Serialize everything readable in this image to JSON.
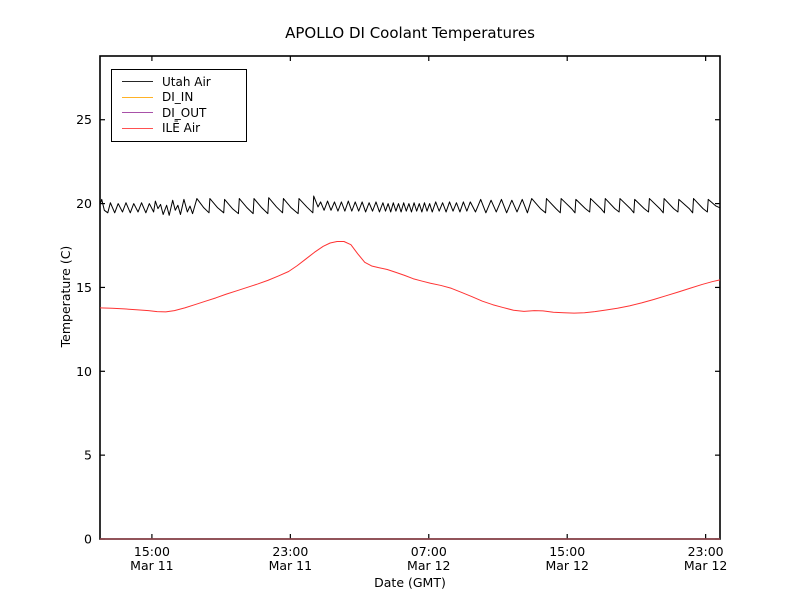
{
  "figure": {
    "title": "APOLLO DI Coolant Temperatures",
    "xlabel": "Date (GMT)",
    "ylabel": "Temperature (C)",
    "background_color": "#ffffff",
    "axis_color": "#000000"
  },
  "chart_data": {
    "type": "line",
    "title": "APOLLO DI Coolant Temperatures",
    "xlabel": "Date (GMT)",
    "ylabel": "Temperature (C)",
    "grid": false,
    "legend_position": "upper left",
    "x_unit": "hours since Mar 11 12:00 GMT",
    "xlim": [
      0,
      35.83
    ],
    "ylim": [
      0,
      28.8
    ],
    "y_ticks": [
      0,
      5,
      10,
      15,
      20,
      25
    ],
    "x_ticks": [
      {
        "t": 3,
        "time": "15:00",
        "date": "Mar 11"
      },
      {
        "t": 11,
        "time": "23:00",
        "date": "Mar 11"
      },
      {
        "t": 19,
        "time": "07:00",
        "date": "Mar 12"
      },
      {
        "t": 27,
        "time": "15:00",
        "date": "Mar 12"
      },
      {
        "t": 35,
        "time": "23:00",
        "date": "Mar 12"
      }
    ],
    "series": [
      {
        "name": "Utah Air",
        "color": "#000000",
        "points": [
          [
            0,
            19.95
          ],
          [
            0.1,
            20.25
          ],
          [
            0.25,
            19.6
          ],
          [
            0.45,
            19.45
          ],
          [
            0.6,
            20.05
          ],
          [
            0.85,
            19.45
          ],
          [
            1.05,
            20.0
          ],
          [
            1.3,
            19.5
          ],
          [
            1.5,
            20.05
          ],
          [
            1.75,
            19.45
          ],
          [
            1.95,
            20.0
          ],
          [
            2.2,
            19.5
          ],
          [
            2.4,
            20.05
          ],
          [
            2.65,
            19.45
          ],
          [
            2.85,
            20.0
          ],
          [
            3.1,
            19.5
          ],
          [
            3.2,
            20.15
          ],
          [
            3.35,
            19.7
          ],
          [
            3.5,
            19.95
          ],
          [
            3.65,
            19.35
          ],
          [
            3.85,
            19.9
          ],
          [
            4.0,
            19.3
          ],
          [
            4.2,
            20.2
          ],
          [
            4.35,
            19.6
          ],
          [
            4.5,
            19.9
          ],
          [
            4.65,
            19.35
          ],
          [
            4.85,
            20.25
          ],
          [
            5.05,
            19.5
          ],
          [
            5.2,
            19.85
          ],
          [
            5.35,
            19.4
          ],
          [
            5.6,
            20.3
          ],
          [
            6.0,
            19.75
          ],
          [
            6.3,
            19.45
          ],
          [
            6.35,
            20.3
          ],
          [
            6.8,
            19.75
          ],
          [
            7.15,
            19.45
          ],
          [
            7.2,
            20.25
          ],
          [
            7.65,
            19.7
          ],
          [
            8.0,
            19.4
          ],
          [
            8.05,
            20.3
          ],
          [
            8.5,
            19.75
          ],
          [
            8.85,
            19.4
          ],
          [
            8.9,
            20.3
          ],
          [
            9.35,
            19.75
          ],
          [
            9.7,
            19.4
          ],
          [
            9.75,
            20.35
          ],
          [
            10.2,
            19.8
          ],
          [
            10.55,
            19.45
          ],
          [
            10.6,
            20.3
          ],
          [
            11.05,
            19.75
          ],
          [
            11.45,
            19.4
          ],
          [
            11.5,
            20.3
          ],
          [
            11.95,
            19.8
          ],
          [
            12.3,
            19.45
          ],
          [
            12.35,
            20.45
          ],
          [
            12.6,
            19.8
          ],
          [
            12.75,
            20.1
          ],
          [
            12.95,
            19.6
          ],
          [
            13.15,
            20.15
          ],
          [
            13.35,
            19.6
          ],
          [
            13.55,
            20.1
          ],
          [
            13.75,
            19.55
          ],
          [
            13.95,
            20.1
          ],
          [
            14.15,
            19.55
          ],
          [
            14.35,
            20.15
          ],
          [
            14.55,
            19.55
          ],
          [
            14.75,
            20.1
          ],
          [
            14.95,
            19.55
          ],
          [
            15.15,
            20.1
          ],
          [
            15.35,
            19.5
          ],
          [
            15.55,
            20.05
          ],
          [
            15.75,
            19.55
          ],
          [
            15.95,
            20.1
          ],
          [
            16.15,
            19.5
          ],
          [
            16.35,
            20.05
          ],
          [
            16.5,
            19.55
          ],
          [
            16.65,
            20.0
          ],
          [
            16.8,
            19.5
          ],
          [
            16.95,
            20.05
          ],
          [
            17.1,
            19.55
          ],
          [
            17.25,
            20.0
          ],
          [
            17.4,
            19.5
          ],
          [
            17.55,
            20.05
          ],
          [
            17.7,
            19.55
          ],
          [
            17.85,
            20.0
          ],
          [
            18.0,
            19.5
          ],
          [
            18.15,
            20.05
          ],
          [
            18.3,
            19.55
          ],
          [
            18.45,
            20.0
          ],
          [
            18.6,
            19.5
          ],
          [
            18.75,
            20.05
          ],
          [
            18.9,
            19.55
          ],
          [
            19.05,
            20.0
          ],
          [
            19.2,
            19.5
          ],
          [
            19.4,
            20.1
          ],
          [
            19.6,
            19.55
          ],
          [
            19.8,
            20.05
          ],
          [
            20.0,
            19.5
          ],
          [
            20.2,
            20.1
          ],
          [
            20.4,
            19.55
          ],
          [
            20.6,
            20.05
          ],
          [
            20.8,
            19.5
          ],
          [
            21.0,
            20.1
          ],
          [
            21.2,
            19.55
          ],
          [
            21.4,
            20.1
          ],
          [
            21.7,
            19.5
          ],
          [
            22.0,
            20.25
          ],
          [
            22.3,
            19.45
          ],
          [
            22.6,
            20.2
          ],
          [
            22.9,
            19.5
          ],
          [
            23.2,
            20.25
          ],
          [
            23.5,
            19.45
          ],
          [
            23.8,
            20.2
          ],
          [
            24.1,
            19.5
          ],
          [
            24.4,
            20.25
          ],
          [
            24.7,
            19.45
          ],
          [
            24.95,
            20.3
          ],
          [
            25.45,
            19.7
          ],
          [
            25.75,
            19.45
          ],
          [
            25.8,
            20.3
          ],
          [
            26.35,
            19.7
          ],
          [
            26.6,
            19.45
          ],
          [
            26.65,
            20.3
          ],
          [
            27.25,
            19.7
          ],
          [
            27.45,
            19.45
          ],
          [
            27.5,
            20.25
          ],
          [
            28.05,
            19.7
          ],
          [
            28.3,
            19.5
          ],
          [
            28.35,
            20.3
          ],
          [
            28.95,
            19.7
          ],
          [
            29.15,
            19.45
          ],
          [
            29.2,
            20.3
          ],
          [
            29.75,
            19.7
          ],
          [
            30.0,
            19.5
          ],
          [
            30.05,
            20.3
          ],
          [
            30.65,
            19.7
          ],
          [
            30.85,
            19.45
          ],
          [
            30.9,
            20.25
          ],
          [
            31.45,
            19.7
          ],
          [
            31.7,
            19.5
          ],
          [
            31.75,
            20.3
          ],
          [
            32.35,
            19.7
          ],
          [
            32.55,
            19.45
          ],
          [
            32.6,
            20.3
          ],
          [
            33.15,
            19.7
          ],
          [
            33.4,
            19.5
          ],
          [
            33.45,
            20.25
          ],
          [
            34.05,
            19.7
          ],
          [
            34.25,
            19.45
          ],
          [
            34.3,
            20.3
          ],
          [
            34.85,
            19.7
          ],
          [
            35.1,
            19.5
          ],
          [
            35.15,
            20.25
          ],
          [
            35.6,
            19.85
          ],
          [
            35.83,
            19.75
          ]
        ]
      },
      {
        "name": "DI_IN",
        "color": "#ffa500",
        "points": [
          [
            0,
            0
          ],
          [
            35.83,
            0
          ]
        ]
      },
      {
        "name": "DI_OUT",
        "color": "#993399",
        "points": [
          [
            0,
            0
          ],
          [
            35.83,
            0
          ]
        ]
      },
      {
        "name": "ILĒ Air",
        "color": "#ff3333",
        "points": [
          [
            0,
            13.78
          ],
          [
            0.7,
            13.76
          ],
          [
            1.4,
            13.72
          ],
          [
            2.1,
            13.67
          ],
          [
            2.8,
            13.62
          ],
          [
            3.3,
            13.56
          ],
          [
            3.8,
            13.54
          ],
          [
            4.3,
            13.62
          ],
          [
            4.9,
            13.78
          ],
          [
            5.5,
            13.98
          ],
          [
            6.1,
            14.18
          ],
          [
            6.7,
            14.38
          ],
          [
            7.3,
            14.6
          ],
          [
            7.9,
            14.8
          ],
          [
            8.5,
            15.0
          ],
          [
            9.1,
            15.2
          ],
          [
            9.7,
            15.42
          ],
          [
            10.3,
            15.68
          ],
          [
            10.9,
            15.95
          ],
          [
            11.4,
            16.3
          ],
          [
            11.9,
            16.7
          ],
          [
            12.4,
            17.1
          ],
          [
            12.9,
            17.45
          ],
          [
            13.3,
            17.65
          ],
          [
            13.7,
            17.74
          ],
          [
            14.1,
            17.74
          ],
          [
            14.5,
            17.55
          ],
          [
            14.9,
            17.0
          ],
          [
            15.3,
            16.5
          ],
          [
            15.7,
            16.28
          ],
          [
            16.1,
            16.18
          ],
          [
            16.6,
            16.07
          ],
          [
            17.1,
            15.9
          ],
          [
            17.6,
            15.72
          ],
          [
            18.1,
            15.52
          ],
          [
            18.6,
            15.38
          ],
          [
            19.1,
            15.25
          ],
          [
            19.7,
            15.12
          ],
          [
            20.3,
            14.95
          ],
          [
            20.9,
            14.7
          ],
          [
            21.5,
            14.45
          ],
          [
            22.1,
            14.18
          ],
          [
            22.7,
            13.97
          ],
          [
            23.3,
            13.8
          ],
          [
            23.9,
            13.64
          ],
          [
            24.5,
            13.57
          ],
          [
            25.1,
            13.62
          ],
          [
            25.6,
            13.6
          ],
          [
            26.2,
            13.52
          ],
          [
            26.8,
            13.49
          ],
          [
            27.4,
            13.47
          ],
          [
            28.0,
            13.49
          ],
          [
            28.6,
            13.56
          ],
          [
            29.2,
            13.65
          ],
          [
            29.9,
            13.76
          ],
          [
            30.6,
            13.9
          ],
          [
            31.3,
            14.08
          ],
          [
            32.0,
            14.28
          ],
          [
            32.7,
            14.5
          ],
          [
            33.4,
            14.72
          ],
          [
            34.1,
            14.95
          ],
          [
            34.8,
            15.18
          ],
          [
            35.4,
            15.35
          ],
          [
            35.83,
            15.45
          ]
        ]
      }
    ]
  }
}
